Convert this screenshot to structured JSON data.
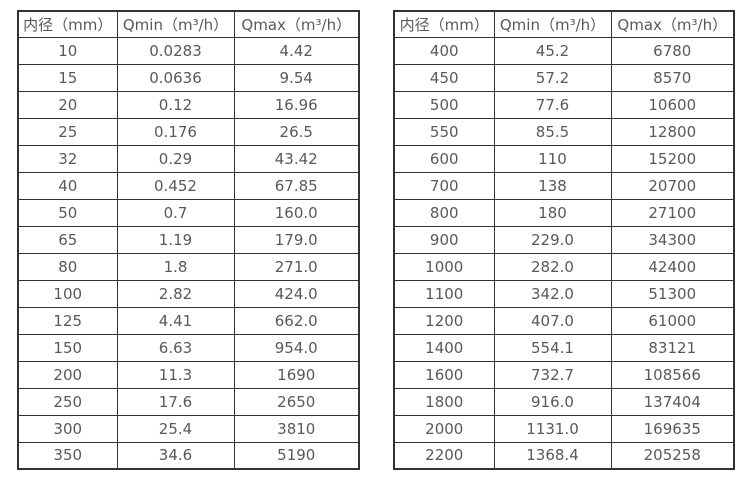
{
  "colors": {
    "background": "#ffffff",
    "text": "#595959",
    "border": "#333333"
  },
  "tables": [
    {
      "name": "flow-spec-table-small-diameters",
      "headers": [
        "内径（mm）",
        "Qmin（m³/h）",
        "Qmax（m³/h）"
      ],
      "rows": [
        [
          "10",
          "0.0283",
          "4.42"
        ],
        [
          "15",
          "0.0636",
          "9.54"
        ],
        [
          "20",
          "0.12",
          "16.96"
        ],
        [
          "25",
          "0.176",
          "26.5"
        ],
        [
          "32",
          "0.29",
          "43.42"
        ],
        [
          "40",
          "0.452",
          "67.85"
        ],
        [
          "50",
          "0.7",
          "160.0"
        ],
        [
          "65",
          "1.19",
          "179.0"
        ],
        [
          "80",
          "1.8",
          "271.0"
        ],
        [
          "100",
          "2.82",
          "424.0"
        ],
        [
          "125",
          "4.41",
          "662.0"
        ],
        [
          "150",
          "6.63",
          "954.0"
        ],
        [
          "200",
          "11.3",
          "1690"
        ],
        [
          "250",
          "17.6",
          "2650"
        ],
        [
          "300",
          "25.4",
          "3810"
        ],
        [
          "350",
          "34.6",
          "5190"
        ]
      ]
    },
    {
      "name": "flow-spec-table-large-diameters",
      "headers": [
        "内径（mm）",
        "Qmin（m³/h）",
        "Qmax（m³/h）"
      ],
      "rows": [
        [
          "400",
          "45.2",
          "6780"
        ],
        [
          "450",
          "57.2",
          "8570"
        ],
        [
          "500",
          "77.6",
          "10600"
        ],
        [
          "550",
          "85.5",
          "12800"
        ],
        [
          "600",
          "110",
          "15200"
        ],
        [
          "700",
          "138",
          "20700"
        ],
        [
          "800",
          "180",
          "27100"
        ],
        [
          "900",
          "229.0",
          "34300"
        ],
        [
          "1000",
          "282.0",
          "42400"
        ],
        [
          "1100",
          "342.0",
          "51300"
        ],
        [
          "1200",
          "407.0",
          "61000"
        ],
        [
          "1400",
          "554.1",
          "83121"
        ],
        [
          "1600",
          "732.7",
          "108566"
        ],
        [
          "1800",
          "916.0",
          "137404"
        ],
        [
          "2000",
          "1131.0",
          "169635"
        ],
        [
          "2200",
          "1368.4",
          "205258"
        ]
      ]
    }
  ]
}
